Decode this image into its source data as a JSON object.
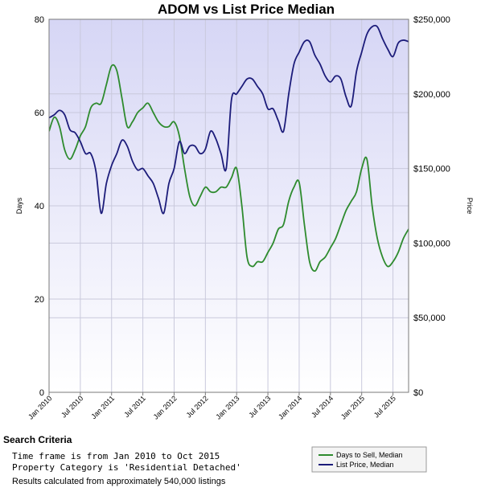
{
  "chart_data": {
    "type": "line",
    "title": "ADOM vs List Price Median",
    "ylabel_left": "Days",
    "ylabel_right": "Price",
    "x_tick_labels": [
      "Jan 2010",
      "Jul 2010",
      "Jan 2011",
      "Jul 2011",
      "Jan 2012",
      "Jul 2012",
      "Jan 2013",
      "Jul 2013",
      "Jan 2014",
      "Jul 2014",
      "Jan 2015",
      "Jul 2015"
    ],
    "y_left_ticks": [
      "0",
      "20",
      "40",
      "60",
      "80"
    ],
    "y_left_range": [
      0,
      80
    ],
    "y_right_ticks": [
      "$0",
      "$50,000",
      "$100,000",
      "$150,000",
      "$200,000",
      "$250,000"
    ],
    "y_right_range": [
      0,
      250000
    ],
    "grid": true,
    "legend_position": "bottom-right",
    "colors": {
      "plot_bg_top": "#d6d6f5",
      "plot_bg_bottom": "#ffffff",
      "days": "#2e8b2e",
      "price": "#1c1c7a"
    },
    "series": [
      {
        "name": "Days to Sell, Median",
        "axis": "left",
        "x": [
          "2010-01",
          "2010-02",
          "2010-03",
          "2010-04",
          "2010-05",
          "2010-06",
          "2010-07",
          "2010-08",
          "2010-09",
          "2010-10",
          "2010-11",
          "2010-12",
          "2011-01",
          "2011-02",
          "2011-03",
          "2011-04",
          "2011-05",
          "2011-06",
          "2011-07",
          "2011-08",
          "2011-09",
          "2011-10",
          "2011-11",
          "2011-12",
          "2012-01",
          "2012-02",
          "2012-03",
          "2012-04",
          "2012-05",
          "2012-06",
          "2012-07",
          "2012-08",
          "2012-09",
          "2012-10",
          "2012-11",
          "2012-12",
          "2013-01",
          "2013-02",
          "2013-03",
          "2013-04",
          "2013-05",
          "2013-06",
          "2013-07",
          "2013-08",
          "2013-09",
          "2013-10",
          "2013-11",
          "2013-12",
          "2014-01",
          "2014-02",
          "2014-03",
          "2014-04",
          "2014-05",
          "2014-06",
          "2014-07",
          "2014-08",
          "2014-09",
          "2014-10",
          "2014-11",
          "2014-12",
          "2015-01",
          "2015-02",
          "2015-03",
          "2015-04",
          "2015-05",
          "2015-06",
          "2015-07",
          "2015-08",
          "2015-09",
          "2015-10"
        ],
        "values": [
          56,
          59,
          57,
          52,
          50,
          52,
          55,
          57,
          61,
          62,
          62,
          66,
          70,
          69,
          63,
          57,
          58,
          60,
          61,
          62,
          60,
          58,
          57,
          57,
          58,
          55,
          48,
          42,
          40,
          42,
          44,
          43,
          43,
          44,
          44,
          46,
          48,
          40,
          29,
          27,
          28,
          28,
          30,
          32,
          35,
          36,
          41,
          44,
          45,
          36,
          28,
          26,
          28,
          29,
          31,
          33,
          36,
          39,
          41,
          43,
          48,
          50,
          40,
          33,
          29,
          27,
          28,
          30,
          33,
          35
        ]
      },
      {
        "name": "List Price, Median",
        "axis": "right",
        "x": [
          "2010-01",
          "2010-02",
          "2010-03",
          "2010-04",
          "2010-05",
          "2010-06",
          "2010-07",
          "2010-08",
          "2010-09",
          "2010-10",
          "2010-11",
          "2010-12",
          "2011-01",
          "2011-02",
          "2011-03",
          "2011-04",
          "2011-05",
          "2011-06",
          "2011-07",
          "2011-08",
          "2011-09",
          "2011-10",
          "2011-11",
          "2011-12",
          "2012-01",
          "2012-02",
          "2012-03",
          "2012-04",
          "2012-05",
          "2012-06",
          "2012-07",
          "2012-08",
          "2012-09",
          "2012-10",
          "2012-11",
          "2012-12",
          "2013-01",
          "2013-02",
          "2013-03",
          "2013-04",
          "2013-05",
          "2013-06",
          "2013-07",
          "2013-08",
          "2013-09",
          "2013-10",
          "2013-11",
          "2013-12",
          "2014-01",
          "2014-02",
          "2014-03",
          "2014-04",
          "2014-05",
          "2014-06",
          "2014-07",
          "2014-08",
          "2014-09",
          "2014-10",
          "2014-11",
          "2014-12",
          "2015-01",
          "2015-02",
          "2015-03",
          "2015-04",
          "2015-05",
          "2015-06",
          "2015-07",
          "2015-08",
          "2015-09",
          "2015-10"
        ],
        "values": [
          184000,
          186000,
          189000,
          186000,
          176000,
          174000,
          168000,
          160000,
          160000,
          148000,
          120000,
          140000,
          152000,
          160000,
          169000,
          165000,
          155000,
          149000,
          150000,
          145000,
          140000,
          130000,
          120000,
          140000,
          150000,
          168000,
          160000,
          165000,
          165000,
          160000,
          163000,
          175000,
          170000,
          160000,
          150000,
          196000,
          200000,
          205000,
          210000,
          210000,
          205000,
          200000,
          190000,
          190000,
          182000,
          175000,
          200000,
          220000,
          228000,
          235000,
          235000,
          226000,
          220000,
          212000,
          208000,
          212000,
          210000,
          198000,
          192000,
          215000,
          228000,
          240000,
          245000,
          245000,
          237000,
          230000,
          225000,
          234000,
          236000,
          235000
        ]
      }
    ]
  },
  "criteria": {
    "heading": "Search Criteria",
    "line1": "Time frame is from Jan 2010 to Oct 2015",
    "line2": "Property Category is 'Residential Detached'",
    "results": "Results calculated from approximately 540,000 listings"
  }
}
